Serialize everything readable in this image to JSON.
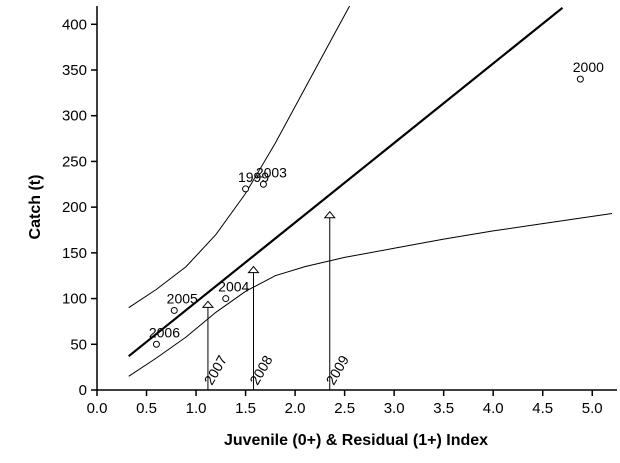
{
  "chart_data": {
    "type": "scatter",
    "xlabel": "Juvenile (0+) & Residual (1+) Index",
    "ylabel": "Catch (t)",
    "xlim": [
      0,
      5.25
    ],
    "ylim": [
      0,
      420
    ],
    "xticks": [
      {
        "value": 0,
        "label": "0.0"
      },
      0.5,
      {
        "value": 1,
        "label": "1.0"
      },
      1.5,
      {
        "value": 2,
        "label": "2.0"
      },
      2.5,
      {
        "value": 3,
        "label": "3.0"
      },
      3.5,
      {
        "value": 4,
        "label": "4.0"
      },
      4.5,
      {
        "value": 5,
        "label": "5.0"
      }
    ],
    "yticks": [
      0,
      50,
      100,
      150,
      200,
      250,
      300,
      350,
      400
    ],
    "points": {
      "labels": [
        "1999",
        "2003",
        "2000",
        "2004",
        "2005",
        "2006"
      ],
      "x": [
        1.5,
        1.68,
        4.88,
        1.3,
        0.78,
        0.6
      ],
      "values": [
        220,
        225,
        340,
        100,
        87,
        50
      ]
    },
    "arrows": {
      "labels": [
        "2007",
        "2008",
        "2009"
      ],
      "x": [
        1.12,
        1.58,
        2.35
      ],
      "values": [
        97,
        135,
        195
      ]
    },
    "lines": [
      {
        "x": [
          0.32,
          4.7
        ],
        "values": [
          37,
          418
        ],
        "width": 2.2
      },
      {
        "x": [
          0.32,
          0.6,
          0.9,
          1.2,
          1.5,
          1.8,
          2.1,
          2.4,
          2.55
        ],
        "values": [
          90,
          110,
          135,
          170,
          215,
          270,
          330,
          390,
          420
        ],
        "width": 1
      },
      {
        "x": [
          0.32,
          0.6,
          0.9,
          1.2,
          1.5,
          1.8,
          2.1,
          2.5,
          3.0,
          3.5,
          4.0,
          4.5,
          5.2
        ],
        "values": [
          15,
          35,
          58,
          85,
          108,
          125,
          135,
          145,
          155,
          165,
          174,
          182,
          193
        ],
        "width": 1
      }
    ]
  }
}
